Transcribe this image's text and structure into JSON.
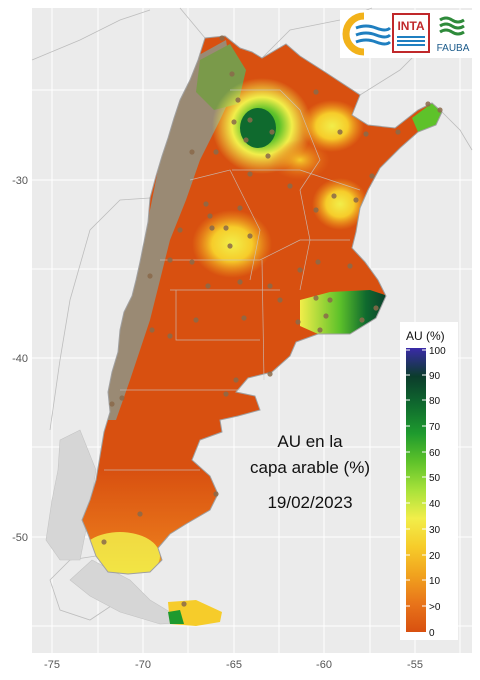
{
  "map": {
    "title_line1": "AU en la",
    "title_line2": "capa arable (%)",
    "date": "19/02/2023",
    "x_ticks": [
      "-75",
      "-70",
      "-65",
      "-60",
      "-55"
    ],
    "y_ticks": [
      "-30",
      "-40",
      "-50"
    ],
    "background_color": "#ebebeb",
    "grid_color": "#ffffff"
  },
  "legend": {
    "title": "AU (%)",
    "labels": [
      "100",
      "90",
      "80",
      "70",
      "60",
      "50",
      "40",
      "30",
      "20",
      "10",
      ">0",
      "0"
    ],
    "colors": [
      "#3a2aa8",
      "#0b3c2c",
      "#0f6a2e",
      "#1e9a2e",
      "#5ec22a",
      "#a8e23a",
      "#f2ee4a",
      "#f6cc2a",
      "#f1a21e",
      "#e8741a",
      "#d85010"
    ]
  },
  "logos": {
    "inta_text": "INTA",
    "fauba_text": "FAUBA"
  }
}
